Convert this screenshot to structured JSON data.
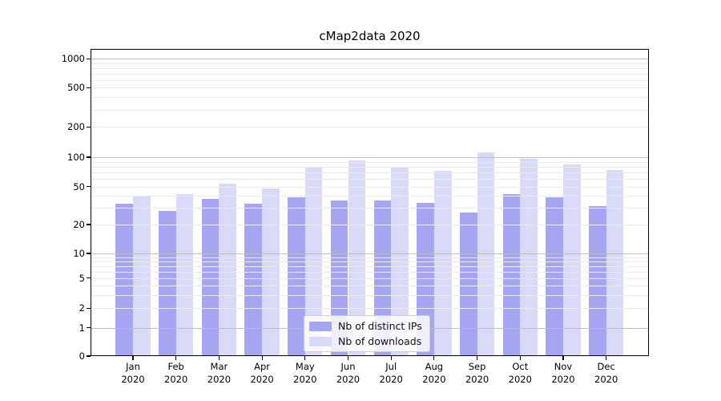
{
  "figure": {
    "title": "cMap2data 2020"
  },
  "chart_data": {
    "type": "bar",
    "title": "cMap2data 2020",
    "categories": [
      "Jan",
      "Feb",
      "Mar",
      "Apr",
      "May",
      "Jun",
      "Jul",
      "Aug",
      "Sep",
      "Oct",
      "Nov",
      "Dec"
    ],
    "category_year": "2020",
    "series": [
      {
        "name": "Nb of distinct IPs",
        "color": "#a5a5f2",
        "values": [
          33,
          28,
          37,
          33,
          39,
          36,
          36,
          34,
          27,
          42,
          39,
          31
        ]
      },
      {
        "name": "Nb of downloads",
        "color": "#d9d9f8",
        "values": [
          40,
          42,
          54,
          48,
          79,
          92,
          78,
          73,
          112,
          96,
          84,
          74
        ]
      }
    ],
    "xlabel": "",
    "ylabel": "",
    "yscale": "symlog",
    "yticks": [
      0,
      1,
      2,
      5,
      10,
      20,
      50,
      100,
      200,
      500,
      1000
    ],
    "ylim": [
      0,
      1260
    ],
    "grid": true,
    "legend_position": "lower center (inside plot)"
  }
}
